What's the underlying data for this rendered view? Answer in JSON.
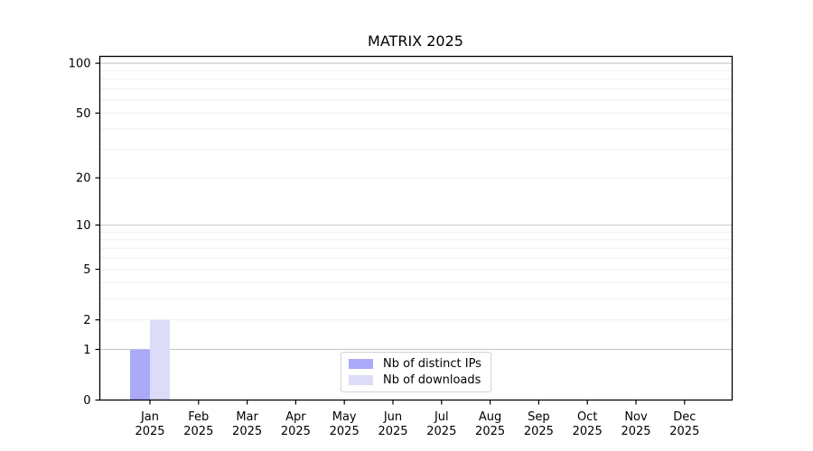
{
  "chart_data": {
    "type": "bar",
    "title": "MATRIX 2025",
    "categories": [
      {
        "label": "Jan",
        "sublabel": "2025"
      },
      {
        "label": "Feb",
        "sublabel": "2025"
      },
      {
        "label": "Mar",
        "sublabel": "2025"
      },
      {
        "label": "Apr",
        "sublabel": "2025"
      },
      {
        "label": "May",
        "sublabel": "2025"
      },
      {
        "label": "Jun",
        "sublabel": "2025"
      },
      {
        "label": "Jul",
        "sublabel": "2025"
      },
      {
        "label": "Aug",
        "sublabel": "2025"
      },
      {
        "label": "Sep",
        "sublabel": "2025"
      },
      {
        "label": "Oct",
        "sublabel": "2025"
      },
      {
        "label": "Nov",
        "sublabel": "2025"
      },
      {
        "label": "Dec",
        "sublabel": "2025"
      }
    ],
    "series": [
      {
        "name": "Nb of distinct IPs",
        "color": "#aaaaf8",
        "values": [
          1,
          0,
          0,
          0,
          0,
          0,
          0,
          0,
          0,
          0,
          0,
          0
        ]
      },
      {
        "name": "Nb of downloads",
        "color": "#dcdcf8",
        "values": [
          2,
          0,
          0,
          0,
          0,
          0,
          0,
          0,
          0,
          0,
          0,
          0
        ]
      }
    ],
    "yscale": "log1p",
    "yticks": [
      0,
      1,
      2,
      5,
      10,
      20,
      50,
      100
    ],
    "ylim": [
      0,
      110
    ],
    "xlabel": "",
    "ylabel": "",
    "grid": "both",
    "legend_position": "lower center"
  },
  "colors": {
    "grid_minor": "#efefef",
    "grid_major": "#c8c8c8",
    "spine": "#000000",
    "text": "#000000",
    "background": "#ffffff"
  }
}
